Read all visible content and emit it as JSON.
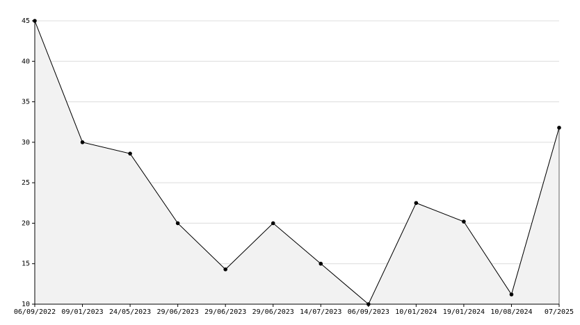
{
  "chart_data": {
    "type": "area",
    "categories": [
      "06/09/2022",
      "09/01/2023",
      "24/05/2023",
      "29/06/2023",
      "29/06/2023",
      "29/06/2023",
      "14/07/2023",
      "06/09/2023",
      "10/01/2024",
      "19/01/2024",
      "10/08/2024",
      "07/2025"
    ],
    "values": [
      45,
      30,
      28.6,
      20,
      14.3,
      20,
      15,
      10,
      22.5,
      20.2,
      11.2,
      31.8
    ],
    "color": "#000000",
    "fill_color": "#f2f2f2",
    "ylim": [
      10,
      45
    ],
    "yticks": [
      10,
      15,
      20,
      25,
      30,
      35,
      40,
      45
    ],
    "grid": true
  }
}
